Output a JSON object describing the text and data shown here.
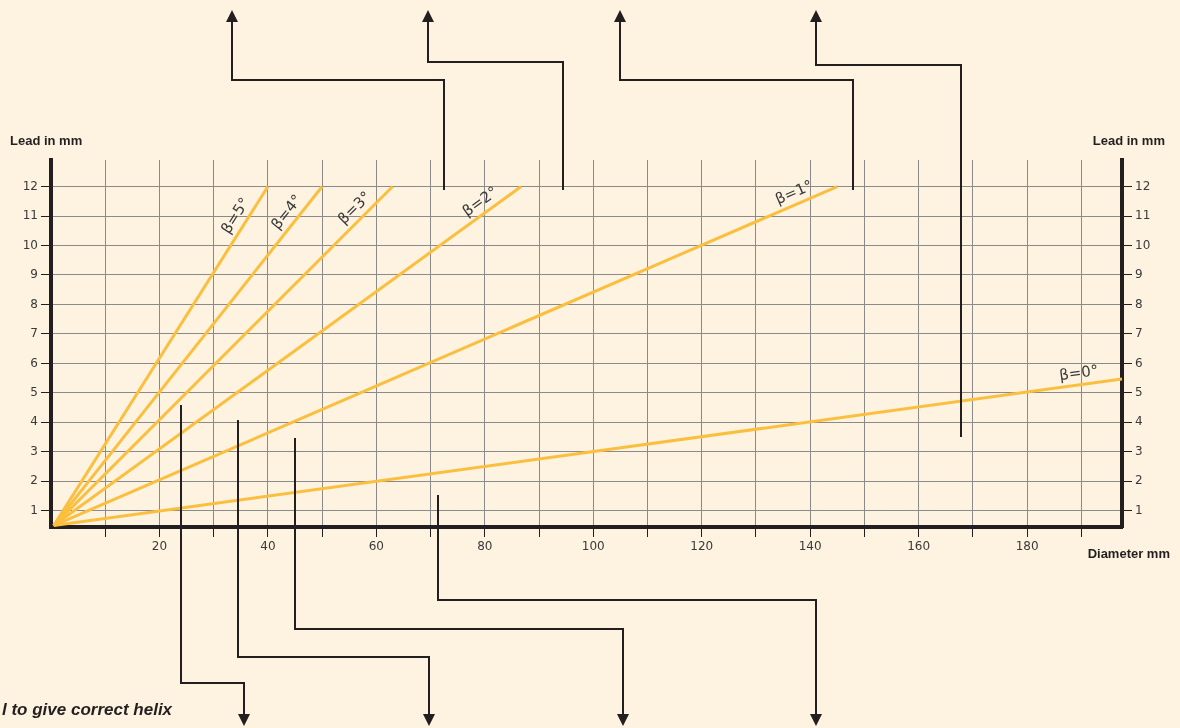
{
  "chart_data": {
    "type": "line",
    "xlabel": "Diameter mm",
    "ylabel": "Lead in mm",
    "y2label": "Lead in mm",
    "xlim": [
      0,
      197.5
    ],
    "ylim": [
      0.45,
      12.9
    ],
    "y2lim": [
      0.45,
      12.9
    ],
    "xticks": [
      {
        "value": 10,
        "label": null
      },
      20,
      {
        "value": 30,
        "label": null
      },
      40,
      {
        "value": 50,
        "label": null
      },
      60,
      {
        "value": 70,
        "label": null
      },
      80,
      {
        "value": 90,
        "label": null
      },
      100,
      {
        "value": 110,
        "label": null
      },
      120,
      {
        "value": 130,
        "label": null
      },
      140,
      {
        "value": 150,
        "label": null
      },
      160,
      {
        "value": 170,
        "label": null
      },
      180,
      {
        "value": 190,
        "label": null
      }
    ],
    "yticks": [
      1,
      2,
      3,
      4,
      5,
      6,
      7,
      8,
      9,
      10,
      11,
      12
    ],
    "y2ticks": [
      1,
      2,
      3,
      4,
      5,
      6,
      7,
      8,
      9,
      10,
      11,
      12
    ],
    "grid": true,
    "marker": "none",
    "line_style": "solid",
    "series": [
      {
        "name": "β=5°",
        "color": "#fbbf3f",
        "x": [
          0.5,
          40
        ],
        "values": [
          0.5,
          12
        ]
      },
      {
        "name": "β=4°",
        "color": "#fbbf3f",
        "x": [
          0.5,
          50
        ],
        "values": [
          0.5,
          12
        ]
      },
      {
        "name": "β=3°",
        "color": "#fbbf3f",
        "x": [
          0.5,
          63
        ],
        "values": [
          0.5,
          12
        ]
      },
      {
        "name": "β=2°",
        "color": "#fbbf3f",
        "x": [
          0.5,
          86.7
        ],
        "values": [
          0.5,
          12
        ]
      },
      {
        "name": "β=1°",
        "color": "#fbbf3f",
        "x": [
          0.5,
          145
        ],
        "values": [
          0.5,
          12
        ]
      },
      {
        "name": "β=0°",
        "color": "#fbbf3f",
        "x": [
          0.5,
          197.5
        ],
        "values": [
          0.5,
          5.47
        ]
      }
    ],
    "annotations": [
      "l to give correct helix"
    ]
  }
}
